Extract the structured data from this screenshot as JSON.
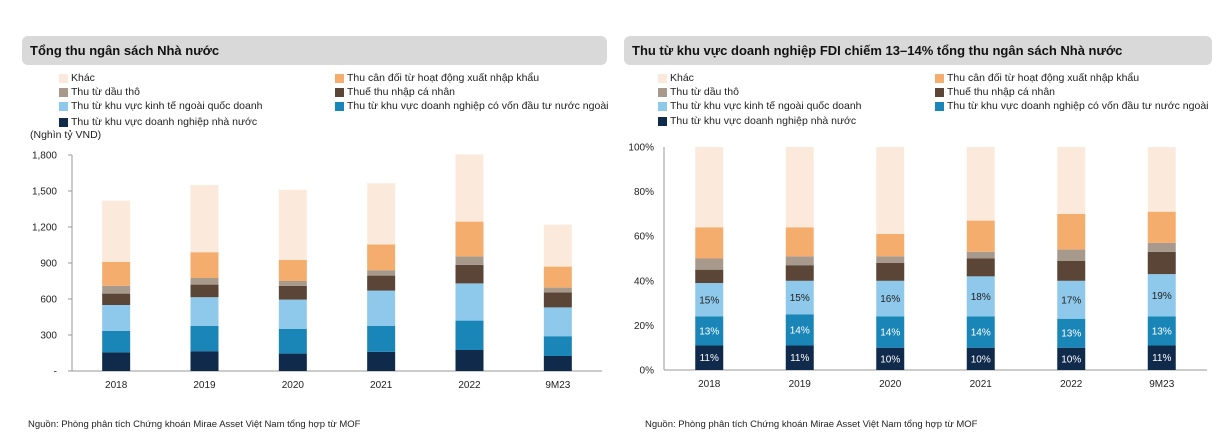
{
  "source_text": "Nguồn: Phòng phân tích Chứng khoán Mirae Asset Việt Nam tổng hợp từ MOF",
  "colors": {
    "khac": "#fbeadb",
    "can_doi_xnk": "#f5ad6e",
    "dau_tho": "#a8998d",
    "thue_tncn": "#5b4536",
    "ngoai_quoc_doanh": "#8ec8ea",
    "fdi": "#1a86b8",
    "dnnn": "#0f2a4a"
  },
  "legend": [
    {
      "key": "khac",
      "label": "Khác"
    },
    {
      "key": "can_doi_xnk",
      "label": "Thu cân đối từ hoạt động xuất nhập khẩu"
    },
    {
      "key": "dau_tho",
      "label": "Thu từ dầu thô"
    },
    {
      "key": "thue_tncn",
      "label": "Thuế thu nhập cá nhân"
    },
    {
      "key": "ngoai_quoc_doanh",
      "label": "Thu từ khu vực kinh tế ngoài quốc doanh"
    },
    {
      "key": "fdi",
      "label": "Thu từ khu vực doanh nghiệp có vốn đầu tư nước ngoài"
    },
    {
      "key": "dnnn",
      "label": "Thu từ khu vực doanh nghiệp nhà nước"
    }
  ],
  "chart_data": [
    {
      "type": "bar",
      "stacked": true,
      "title": "Tổng thu ngân sách Nhà nước",
      "unit_label": "(Nghìn tỷ VND)",
      "categories": [
        "2018",
        "2019",
        "2020",
        "2021",
        "2022",
        "9M23"
      ],
      "ylim": [
        0,
        1800
      ],
      "yticks": [
        0,
        300,
        600,
        900,
        1200,
        1500,
        1800
      ],
      "ytick_labels": [
        "-",
        "300",
        "600",
        "900",
        "1,200",
        "1,500",
        "1,800"
      ],
      "series": [
        {
          "key": "dnnn",
          "name": "Thu từ khu vực doanh nghiệp nhà nước",
          "values": [
            155,
            165,
            145,
            160,
            175,
            125
          ]
        },
        {
          "key": "fdi",
          "name": "Thu từ khu vực doanh nghiệp có vốn đầu tư nước ngoài",
          "values": [
            180,
            210,
            205,
            215,
            245,
            165
          ]
        },
        {
          "key": "ngoai_quoc_doanh",
          "name": "Thu từ khu vực kinh tế ngoài quốc doanh",
          "values": [
            215,
            240,
            245,
            295,
            310,
            240
          ]
        },
        {
          "key": "thue_tncn",
          "name": "Thuế thu nhập cá nhân",
          "values": [
            95,
            105,
            115,
            125,
            155,
            125
          ]
        },
        {
          "key": "dau_tho",
          "name": "Thu từ dầu thô",
          "values": [
            65,
            55,
            40,
            45,
            70,
            40
          ]
        },
        {
          "key": "can_doi_xnk",
          "name": "Thu cân đối từ hoạt động xuất nhập khẩu",
          "values": [
            200,
            215,
            175,
            215,
            290,
            175
          ]
        },
        {
          "key": "khac",
          "name": "Khác",
          "values": [
            510,
            560,
            585,
            510,
            560,
            350
          ]
        }
      ]
    },
    {
      "type": "bar",
      "stacked": true,
      "percent": true,
      "title": "Thu từ khu vực doanh nghiệp FDI chiếm 13–14% tổng thu ngân sách Nhà nước",
      "categories": [
        "2018",
        "2019",
        "2020",
        "2021",
        "2022",
        "9M23"
      ],
      "ylim": [
        0,
        100
      ],
      "yticks": [
        0,
        20,
        40,
        60,
        80,
        100
      ],
      "ytick_labels": [
        "0%",
        "20%",
        "40%",
        "60%",
        "80%",
        "100%"
      ],
      "series": [
        {
          "key": "dnnn",
          "name": "Thu từ khu vực doanh nghiệp nhà nước",
          "values": [
            11,
            11,
            10,
            10,
            10,
            11
          ],
          "labels": [
            "11%",
            "11%",
            "10%",
            "10%",
            "10%",
            "11%"
          ]
        },
        {
          "key": "fdi",
          "name": "Thu từ khu vực doanh nghiệp có vốn đầu tư nước ngoài",
          "values": [
            13,
            14,
            14,
            14,
            13,
            13
          ],
          "labels": [
            "13%",
            "14%",
            "14%",
            "14%",
            "13%",
            "13%"
          ]
        },
        {
          "key": "ngoai_quoc_doanh",
          "name": "Thu từ khu vực kinh tế ngoài quốc doanh",
          "values": [
            15,
            15,
            16,
            18,
            17,
            19
          ],
          "labels": [
            "15%",
            "15%",
            "16%",
            "18%",
            "17%",
            "19%"
          ]
        },
        {
          "key": "thue_tncn",
          "name": "Thuế thu nhập cá nhân",
          "values": [
            6,
            7,
            8,
            8,
            9,
            10
          ],
          "labels": null
        },
        {
          "key": "dau_tho",
          "name": "Thu từ dầu thô",
          "values": [
            5,
            4,
            3,
            3,
            5,
            4
          ],
          "labels": null
        },
        {
          "key": "can_doi_xnk",
          "name": "Thu cân đối từ hoạt động xuất nhập khẩu",
          "values": [
            14,
            13,
            10,
            14,
            16,
            14
          ],
          "labels": null
        },
        {
          "key": "khac",
          "name": "Khác",
          "values": [
            36,
            36,
            39,
            33,
            30,
            29
          ],
          "labels": null
        }
      ]
    }
  ]
}
